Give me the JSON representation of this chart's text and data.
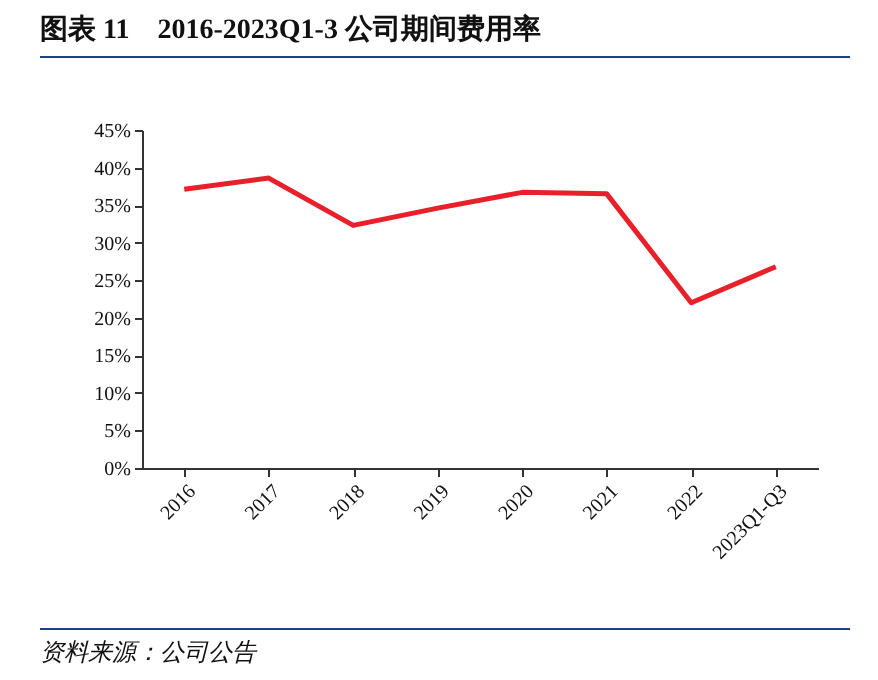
{
  "chart_data": {
    "type": "line",
    "title": "图表 11　2016-2023Q1-3 公司期间费用率",
    "categories": [
      "2016",
      "2017",
      "2018",
      "2019",
      "2020",
      "2021",
      "2022",
      "2023Q1-Q3"
    ],
    "series": [
      {
        "color": "#e8202a",
        "values": [
          37.1,
          38.6,
          32.3,
          34.6,
          36.7,
          36.5,
          22.0,
          26.8
        ]
      }
    ],
    "ylim": [
      0,
      45
    ],
    "yticks": [
      {
        "value": 0,
        "label": "0%"
      },
      {
        "value": 5,
        "label": "5%"
      },
      {
        "value": 10,
        "label": "10%"
      },
      {
        "value": 15,
        "label": "15%"
      },
      {
        "value": 20,
        "label": "20%"
      },
      {
        "value": 25,
        "label": "25%"
      },
      {
        "value": 30,
        "label": "30%"
      },
      {
        "value": 35,
        "label": "35%"
      },
      {
        "value": 40,
        "label": "40%"
      },
      {
        "value": 45,
        "label": "45%"
      }
    ],
    "annotations": [
      "资料来源：公司公告"
    ],
    "grid": false,
    "marker": "none",
    "line_style": "solid"
  }
}
